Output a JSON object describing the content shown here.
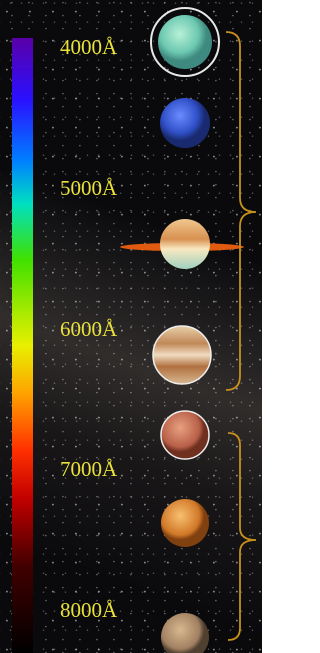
{
  "wavelength_labels": [
    "4000Å",
    "5000Å",
    "6000Å",
    "7000Å",
    "8000Å"
  ]
}
